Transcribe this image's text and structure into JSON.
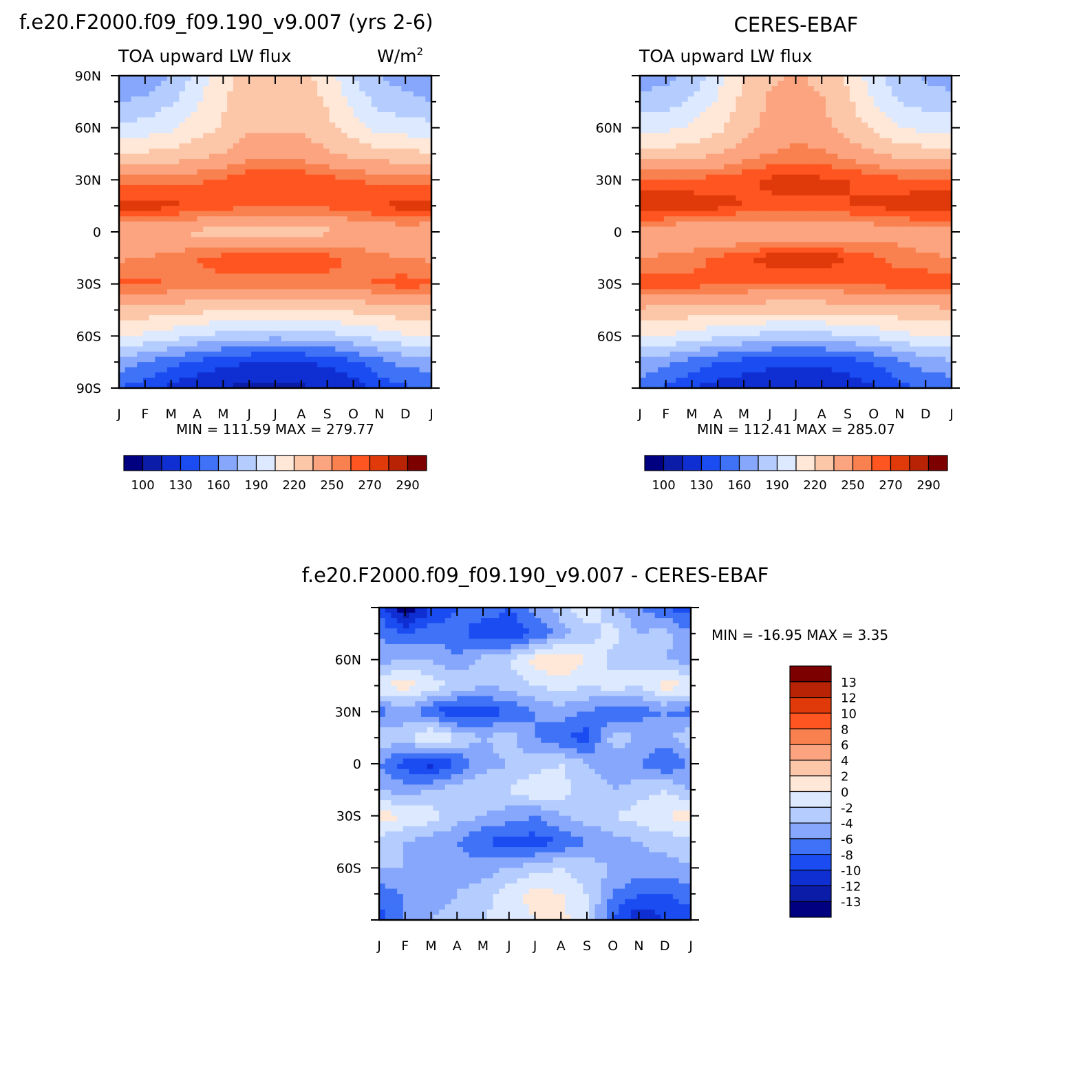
{
  "colors": {
    "scale": [
      "#000080",
      "#0a1ca8",
      "#0f2fd2",
      "#1a4cf2",
      "#3f72f7",
      "#86a7fb",
      "#b5cdfe",
      "#dde9ff",
      "#ffe8d8",
      "#fcc7a9",
      "#fba47f",
      "#f9804f",
      "#ff5520",
      "#e03a0a",
      "#b82305",
      "#7d0000"
    ]
  },
  "panels": [
    {
      "id": "model",
      "title": "f.e20.F2000.f09_f09.190_v9.007 (yrs 2-6)",
      "subtitle_left": "TOA upward LW flux",
      "units": "W/m",
      "units_sup": "2",
      "min_max": "MIN = 111.59  MAX = 279.77",
      "colorbar_labels": [
        "100",
        "130",
        "160",
        "190",
        "220",
        "250",
        "270",
        "290"
      ]
    },
    {
      "id": "obs",
      "title": "CERES-EBAF",
      "subtitle_left": "TOA upward LW flux",
      "units": "",
      "units_sup": "",
      "min_max": "MIN = 112.41  MAX = 285.07",
      "colorbar_labels": [
        "100",
        "130",
        "160",
        "190",
        "220",
        "250",
        "270",
        "290"
      ]
    },
    {
      "id": "diff",
      "title": "f.e20.F2000.f09_f09.190_v9.007 - CERES-EBAF",
      "min_max": "MIN = -16.95 MAX =    3.35",
      "colorbar_labels": [
        "13",
        "12",
        "10",
        "8",
        "6",
        "4",
        "2",
        "0",
        "-2",
        "-4",
        "-6",
        "-8",
        "-10",
        "-12",
        "-13"
      ]
    }
  ],
  "chart_data": [
    {
      "type": "heatmap",
      "title": "f.e20.F2000.f09_f09.190_v9.007 (yrs 2-6)",
      "subtitle": "TOA upward LW flux",
      "units": "W/m2",
      "x_ticks": [
        "J",
        "F",
        "M",
        "A",
        "M",
        "J",
        "J",
        "A",
        "S",
        "O",
        "N",
        "D",
        "J"
      ],
      "y_ticks": [
        "90N",
        "60N",
        "30N",
        "0",
        "30S",
        "60S",
        "90S"
      ],
      "levels": [
        100,
        115,
        130,
        145,
        160,
        175,
        190,
        205,
        220,
        235,
        250,
        260,
        270,
        280,
        290
      ],
      "months": [
        "Jan",
        "Feb",
        "Mar",
        "Apr",
        "May",
        "Jun",
        "Jul",
        "Aug",
        "Sep",
        "Oct",
        "Nov",
        "Dec",
        "Jan"
      ],
      "lats": [
        90,
        75,
        60,
        45,
        30,
        15,
        0,
        -15,
        -30,
        -45,
        -60,
        -75,
        -90
      ],
      "values": [
        [
          162,
          165,
          175,
          195,
          215,
          228,
          230,
          226,
          212,
          190,
          175,
          168,
          162
        ],
        [
          175,
          178,
          188,
          203,
          218,
          230,
          232,
          229,
          218,
          200,
          185,
          180,
          175
        ],
        [
          195,
          196,
          203,
          212,
          222,
          232,
          234,
          232,
          224,
          212,
          200,
          197,
          195
        ],
        [
          222,
          222,
          225,
          230,
          236,
          244,
          246,
          244,
          238,
          230,
          226,
          224,
          222
        ],
        [
          256,
          255,
          255,
          258,
          262,
          268,
          270,
          268,
          264,
          260,
          258,
          257,
          256
        ],
        [
          276,
          275,
          273,
          268,
          264,
          262,
          262,
          262,
          263,
          266,
          270,
          275,
          276
        ],
        [
          238,
          236,
          234,
          232,
          230,
          228,
          226,
          228,
          232,
          236,
          240,
          240,
          238
        ],
        [
          248,
          250,
          254,
          260,
          264,
          268,
          268,
          268,
          264,
          258,
          252,
          250,
          248
        ],
        [
          262,
          262,
          260,
          258,
          257,
          256,
          256,
          256,
          256,
          258,
          262,
          265,
          262
        ],
        [
          230,
          228,
          226,
          224,
          222,
          220,
          220,
          220,
          221,
          223,
          226,
          229,
          230
        ],
        [
          205,
          202,
          196,
          190,
          185,
          181,
          180,
          181,
          184,
          190,
          197,
          203,
          205
        ],
        [
          168,
          160,
          150,
          142,
          135,
          130,
          128,
          129,
          133,
          142,
          155,
          165,
          168
        ],
        [
          145,
          138,
          125,
          118,
          114,
          112,
          112,
          113,
          115,
          122,
          135,
          143,
          145
        ]
      ]
    },
    {
      "type": "heatmap",
      "title": "CERES-EBAF",
      "subtitle": "TOA upward LW flux",
      "x_ticks": [
        "J",
        "F",
        "M",
        "A",
        "M",
        "J",
        "J",
        "A",
        "S",
        "O",
        "N",
        "D",
        "J"
      ],
      "y_ticks": [
        "60N",
        "30N",
        "0",
        "30S",
        "60S"
      ],
      "levels": [
        100,
        115,
        130,
        145,
        160,
        175,
        190,
        205,
        220,
        235,
        250,
        260,
        270,
        280,
        290
      ],
      "months": [
        "Jan",
        "Feb",
        "Mar",
        "Apr",
        "May",
        "Jun",
        "Jul",
        "Aug",
        "Sep",
        "Oct",
        "Nov",
        "Dec",
        "Jan"
      ],
      "lats": [
        90,
        75,
        60,
        45,
        30,
        15,
        0,
        -15,
        -30,
        -45,
        -60,
        -75,
        -90
      ],
      "values": [
        [
          168,
          170,
          180,
          200,
          220,
          233,
          236,
          232,
          216,
          196,
          180,
          172,
          168
        ],
        [
          180,
          182,
          192,
          207,
          224,
          237,
          240,
          236,
          223,
          205,
          190,
          184,
          180
        ],
        [
          200,
          201,
          208,
          217,
          228,
          240,
          244,
          240,
          230,
          217,
          205,
          201,
          200
        ],
        [
          226,
          226,
          229,
          234,
          242,
          250,
          254,
          252,
          244,
          236,
          230,
          227,
          226
        ],
        [
          262,
          261,
          262,
          264,
          268,
          272,
          274,
          272,
          270,
          266,
          263,
          262,
          262
        ],
        [
          282,
          282,
          278,
          274,
          270,
          268,
          268,
          268,
          270,
          272,
          275,
          280,
          282
        ],
        [
          240,
          238,
          236,
          234,
          233,
          232,
          232,
          233,
          236,
          240,
          244,
          242,
          240
        ],
        [
          250,
          252,
          256,
          262,
          268,
          275,
          280,
          278,
          270,
          262,
          256,
          252,
          250
        ],
        [
          266,
          266,
          264,
          262,
          261,
          260,
          260,
          260,
          261,
          262,
          265,
          268,
          266
        ],
        [
          232,
          230,
          228,
          226,
          225,
          224,
          224,
          224,
          225,
          227,
          229,
          231,
          232
        ],
        [
          208,
          205,
          199,
          193,
          189,
          185,
          184,
          185,
          188,
          193,
          200,
          206,
          208
        ],
        [
          172,
          164,
          154,
          146,
          140,
          135,
          133,
          134,
          138,
          146,
          158,
          168,
          172
        ],
        [
          150,
          143,
          130,
          123,
          119,
          117,
          116,
          117,
          120,
          127,
          140,
          148,
          150
        ]
      ]
    },
    {
      "type": "heatmap",
      "title": "f.e20.F2000.f09_f09.190_v9.007 - CERES-EBAF",
      "x_ticks": [
        "J",
        "F",
        "M",
        "A",
        "M",
        "J",
        "J",
        "A",
        "S",
        "O",
        "N",
        "D",
        "J"
      ],
      "y_ticks": [
        "60N",
        "30N",
        "0",
        "30S",
        "60S"
      ],
      "levels": [
        -13,
        -12,
        -10,
        -8,
        -6,
        -4,
        -2,
        0,
        2,
        4,
        6,
        8,
        10,
        12,
        13
      ],
      "months": [
        "Jan",
        "Feb",
        "Mar",
        "Apr",
        "May",
        "Jun",
        "Jul",
        "Aug",
        "Sep",
        "Oct",
        "Nov",
        "Dec",
        "Jan"
      ],
      "lats": [
        90,
        75,
        60,
        45,
        30,
        15,
        0,
        -15,
        -30,
        -45,
        -60,
        -75,
        -90
      ],
      "values": [
        [
          -9,
          -15,
          -10,
          -8,
          -6,
          -8,
          -5,
          -3,
          0,
          -4,
          -6,
          -8,
          -9
        ],
        [
          -6,
          -8,
          -7,
          -7,
          -10,
          -10,
          -8,
          -5,
          -3,
          -1,
          -4,
          -3,
          -6
        ],
        [
          -5,
          -4,
          -4,
          -6,
          -3,
          -2,
          1,
          2,
          0,
          -3,
          -2,
          -4,
          -5
        ],
        [
          0,
          1,
          -1,
          -2,
          -4,
          -3,
          -2,
          -1,
          -2,
          -1,
          -2,
          1,
          0
        ],
        [
          -7,
          -5,
          -8,
          -10,
          -9,
          -8,
          -6,
          -5,
          -6,
          -8,
          -7,
          -6,
          -7
        ],
        [
          -2,
          -3,
          1,
          -2,
          -4,
          -3,
          -6,
          -8,
          -9,
          -3,
          -4,
          -5,
          -2
        ],
        [
          -6,
          -9,
          -11,
          -8,
          -5,
          -4,
          -3,
          -2,
          -4,
          -5,
          -6,
          -8,
          -6
        ],
        [
          -4,
          -5,
          -4,
          -3,
          -2,
          -2,
          0,
          -1,
          -3,
          -4,
          -3,
          -2,
          -4
        ],
        [
          1,
          0,
          -1,
          -3,
          -4,
          -5,
          -6,
          -4,
          -3,
          -2,
          -1,
          0,
          1
        ],
        [
          -3,
          -4,
          -5,
          -6,
          -8,
          -9,
          -9,
          -8,
          -6,
          -5,
          -4,
          -3,
          -3
        ],
        [
          -4,
          -4,
          -5,
          -5,
          -5,
          -4,
          -3,
          -2,
          -3,
          -4,
          -5,
          -5,
          -4
        ],
        [
          -7,
          -6,
          -5,
          -4,
          -3,
          -1,
          1,
          0,
          -2,
          -6,
          -8,
          -8,
          -7
        ],
        [
          -9,
          -6,
          -4,
          -3,
          -2,
          -1,
          0,
          1,
          -2,
          -8,
          -12,
          -10,
          -9
        ]
      ]
    }
  ]
}
